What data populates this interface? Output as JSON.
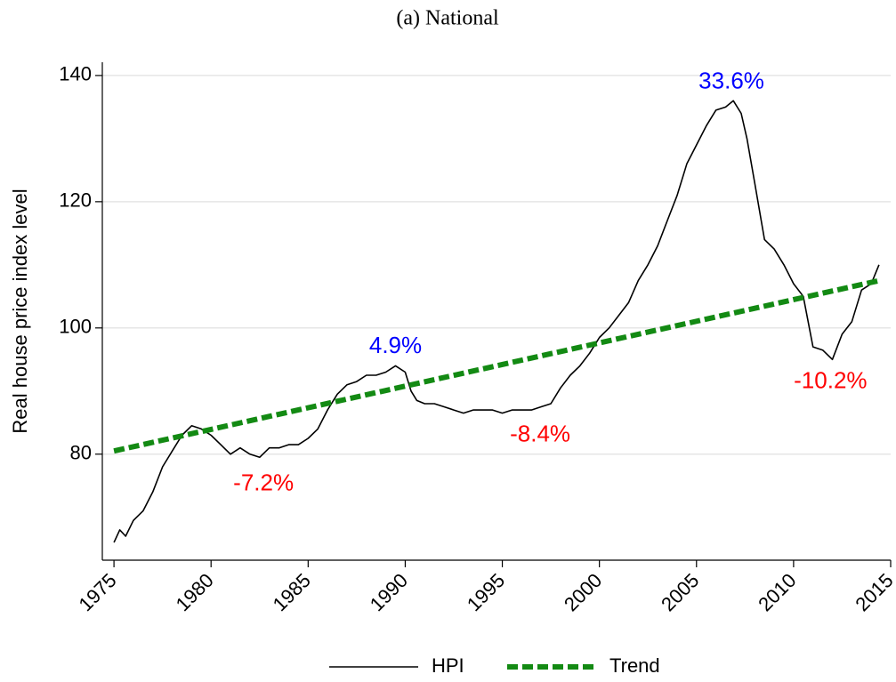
{
  "chart_data": {
    "type": "line",
    "title": "(a) National",
    "y_label": "Real house price index level",
    "xlim": [
      1974.4,
      2015.0
    ],
    "ylim": [
      63.2,
      142.1
    ],
    "xticks": [
      1975,
      1980,
      1985,
      1990,
      1995,
      2000,
      2005,
      2010,
      2015
    ],
    "yticks": [
      80,
      100,
      120,
      140
    ],
    "grid": true,
    "legend": "bottom",
    "series": [
      {
        "name": "HPI",
        "color": "#000000",
        "style": "solid",
        "x": [
          1975.0,
          1975.3,
          1975.6,
          1976.0,
          1976.5,
          1977.0,
          1977.5,
          1978.0,
          1978.5,
          1979.0,
          1979.5,
          1980.0,
          1980.5,
          1981.0,
          1981.5,
          1982.0,
          1982.5,
          1983.0,
          1983.5,
          1984.0,
          1984.5,
          1985.0,
          1985.5,
          1986.0,
          1986.5,
          1987.0,
          1987.5,
          1988.0,
          1988.5,
          1989.0,
          1989.5,
          1990.0,
          1990.3,
          1990.6,
          1991.0,
          1991.5,
          1992.0,
          1992.5,
          1993.0,
          1993.5,
          1994.0,
          1994.5,
          1995.0,
          1995.5,
          1996.0,
          1996.5,
          1997.0,
          1997.5,
          1998.0,
          1998.5,
          1999.0,
          1999.5,
          2000.0,
          2000.5,
          2001.0,
          2001.5,
          2002.0,
          2002.5,
          2003.0,
          2003.5,
          2004.0,
          2004.5,
          2005.0,
          2005.5,
          2006.0,
          2006.5,
          2006.9,
          2007.3,
          2007.6,
          2008.0,
          2008.5,
          2009.0,
          2009.5,
          2010.0,
          2010.5,
          2011.0,
          2011.5,
          2012.0,
          2012.5,
          2013.0,
          2013.5,
          2014.0,
          2014.4
        ],
        "values": [
          66,
          68,
          67,
          69.5,
          71,
          74,
          78,
          80.5,
          83,
          84.5,
          84,
          83,
          81.5,
          80,
          81,
          80,
          79.5,
          81,
          81,
          81.5,
          81.5,
          82.5,
          84,
          87,
          89.5,
          91,
          91.5,
          92.5,
          92.5,
          93,
          94,
          93,
          90,
          88.5,
          88,
          88,
          87.5,
          87,
          86.5,
          87,
          87,
          87,
          86.5,
          87,
          87,
          87,
          87.5,
          88,
          90.5,
          92.5,
          94,
          96,
          98.5,
          100,
          102,
          104,
          107.5,
          110,
          113,
          117,
          121,
          126,
          129,
          132,
          134.5,
          135,
          136,
          134,
          130,
          123,
          114,
          112.5,
          110,
          107,
          105,
          97,
          96.5,
          95,
          99,
          101,
          106,
          107,
          110
        ]
      },
      {
        "name": "Trend",
        "color": "#138a13",
        "style": "dashed",
        "x": [
          1975.0,
          2014.4
        ],
        "values": [
          80.5,
          107.5
        ]
      }
    ],
    "annotations": [
      {
        "text": "33.6%",
        "x": 2006.8,
        "y": 138.9,
        "color": "#0000ff"
      },
      {
        "text": "4.9%",
        "x": 1989.5,
        "y": 97.0,
        "color": "#0000ff"
      },
      {
        "text": "-7.2%",
        "x": 1982.7,
        "y": 75.2,
        "color": "#ff0000"
      },
      {
        "text": "-8.4%",
        "x": 1996.95,
        "y": 83.0,
        "color": "#ff0000"
      },
      {
        "text": "-10.2%",
        "x": 2011.9,
        "y": 91.4,
        "color": "#ff0000"
      }
    ]
  }
}
